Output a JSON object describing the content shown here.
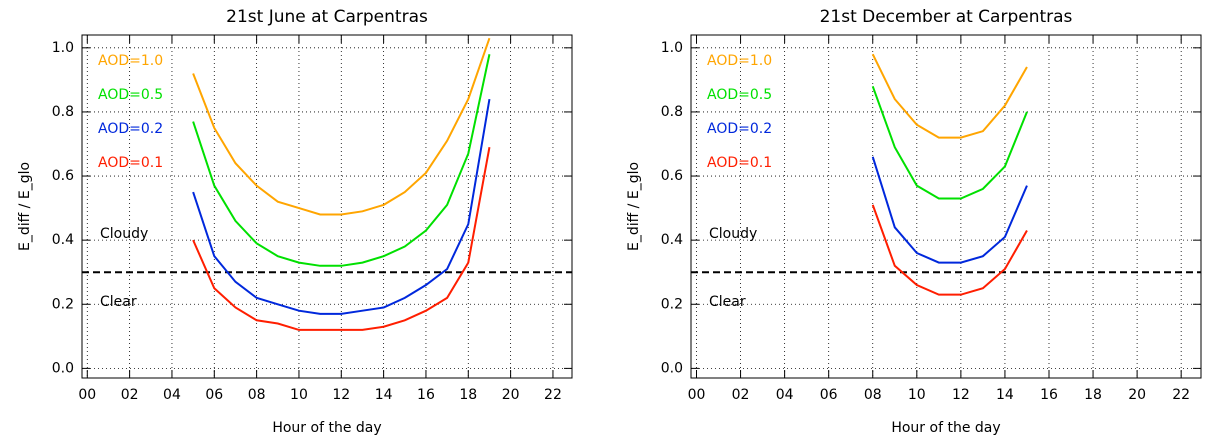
{
  "chart_data": [
    {
      "type": "line",
      "title": "21st June at Carpentras",
      "xlabel": "Hour of the day",
      "ylabel": "E_diff / E_glo",
      "xlim": [
        -0.25,
        22.9
      ],
      "ylim": [
        -0.03,
        1.04
      ],
      "xticks": [
        {
          "value": 0,
          "label": "00"
        },
        {
          "value": 2,
          "label": "02"
        },
        {
          "value": 4,
          "label": "04"
        },
        {
          "value": 6,
          "label": "06"
        },
        {
          "value": 8,
          "label": "08"
        },
        10,
        12,
        14,
        16,
        18,
        20,
        22
      ],
      "yticks": [
        {
          "value": 0,
          "label": "0.0"
        },
        0.2,
        0.4,
        0.6,
        0.8,
        {
          "value": 1,
          "label": "1.0"
        }
      ],
      "grid": true,
      "threshold": 0.3,
      "annotations": [
        "Cloudy",
        "Clear"
      ],
      "x": [
        5,
        6,
        7,
        8,
        9,
        10,
        11,
        12,
        13,
        14,
        15,
        16,
        17,
        18,
        19
      ],
      "series": [
        {
          "name": "AOD=1.0",
          "color": "#ffa500",
          "values": [
            0.92,
            0.75,
            0.64,
            0.57,
            0.52,
            0.5,
            0.48,
            0.48,
            0.49,
            0.51,
            0.55,
            0.61,
            0.71,
            0.84,
            1.03
          ]
        },
        {
          "name": "AOD=0.5",
          "color": "#00e000",
          "values": [
            0.77,
            0.57,
            0.46,
            0.39,
            0.35,
            0.33,
            0.32,
            0.32,
            0.33,
            0.35,
            0.38,
            0.43,
            0.51,
            0.67,
            0.98
          ]
        },
        {
          "name": "AOD=0.2",
          "color": "#0028dc",
          "values": [
            0.55,
            0.35,
            0.27,
            0.22,
            0.2,
            0.18,
            0.17,
            0.17,
            0.18,
            0.19,
            0.22,
            0.26,
            0.31,
            0.45,
            0.84
          ]
        },
        {
          "name": "AOD=0.1",
          "color": "#ff1e00",
          "values": [
            0.4,
            0.25,
            0.19,
            0.15,
            0.14,
            0.12,
            0.12,
            0.12,
            0.12,
            0.13,
            0.15,
            0.18,
            0.22,
            0.33,
            0.69
          ]
        }
      ]
    },
    {
      "type": "line",
      "title": "21st December at Carpentras",
      "xlabel": "Hour of the day",
      "ylabel": "E_diff / E_glo",
      "xlim": [
        -0.25,
        22.9
      ],
      "ylim": [
        -0.03,
        1.04
      ],
      "xticks": [
        {
          "value": 0,
          "label": "00"
        },
        {
          "value": 2,
          "label": "02"
        },
        {
          "value": 4,
          "label": "04"
        },
        {
          "value": 6,
          "label": "06"
        },
        {
          "value": 8,
          "label": "08"
        },
        10,
        12,
        14,
        16,
        18,
        20,
        22
      ],
      "yticks": [
        {
          "value": 0,
          "label": "0.0"
        },
        0.2,
        0.4,
        0.6,
        0.8,
        {
          "value": 1,
          "label": "1.0"
        }
      ],
      "grid": true,
      "threshold": 0.3,
      "annotations": [
        "Cloudy",
        "Clear"
      ],
      "x": [
        8,
        9,
        10,
        11,
        12,
        13,
        14,
        15
      ],
      "series": [
        {
          "name": "AOD=1.0",
          "color": "#ffa500",
          "values": [
            0.98,
            0.84,
            0.76,
            0.72,
            0.72,
            0.74,
            0.82,
            0.94
          ]
        },
        {
          "name": "AOD=0.5",
          "color": "#00e000",
          "values": [
            0.88,
            0.69,
            0.57,
            0.53,
            0.53,
            0.56,
            0.63,
            0.8
          ]
        },
        {
          "name": "AOD=0.2",
          "color": "#0028dc",
          "values": [
            0.66,
            0.44,
            0.36,
            0.33,
            0.33,
            0.35,
            0.41,
            0.57
          ]
        },
        {
          "name": "AOD=0.1",
          "color": "#ff1e00",
          "values": [
            0.51,
            0.32,
            0.26,
            0.23,
            0.23,
            0.25,
            0.31,
            0.43
          ]
        }
      ]
    }
  ]
}
